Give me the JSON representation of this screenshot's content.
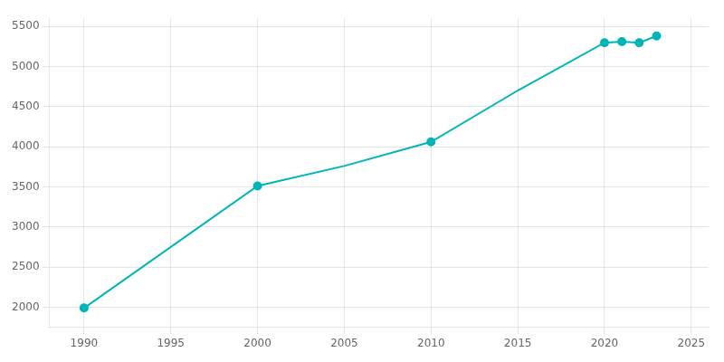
{
  "chart_data": {
    "type": "line",
    "x": [
      1990,
      2000,
      2005,
      2010,
      2015,
      2020,
      2021,
      2022,
      2023
    ],
    "series": [
      {
        "type": "line",
        "color": "#00b5b8",
        "marker": "none",
        "line_style": "solid",
        "values": [
          1990,
          3510,
          3760,
          4060,
          4700,
          5295,
          5310,
          5295,
          5380
        ]
      },
      {
        "type": "line",
        "color": "#00b5b8",
        "marker": "circle",
        "line_style": "none",
        "values": [
          1990,
          3510,
          null,
          4060,
          null,
          5295,
          5310,
          5295,
          5380
        ]
      }
    ],
    "xlim": [
      1988,
      2026
    ],
    "xticks": [
      1990,
      1995,
      2000,
      2005,
      2010,
      2015,
      2020,
      2025
    ],
    "ylim": [
      1750,
      5600
    ],
    "yticks": [
      2000,
      2500,
      3000,
      3500,
      4000,
      4500,
      5000,
      5500
    ],
    "grid": true
  }
}
